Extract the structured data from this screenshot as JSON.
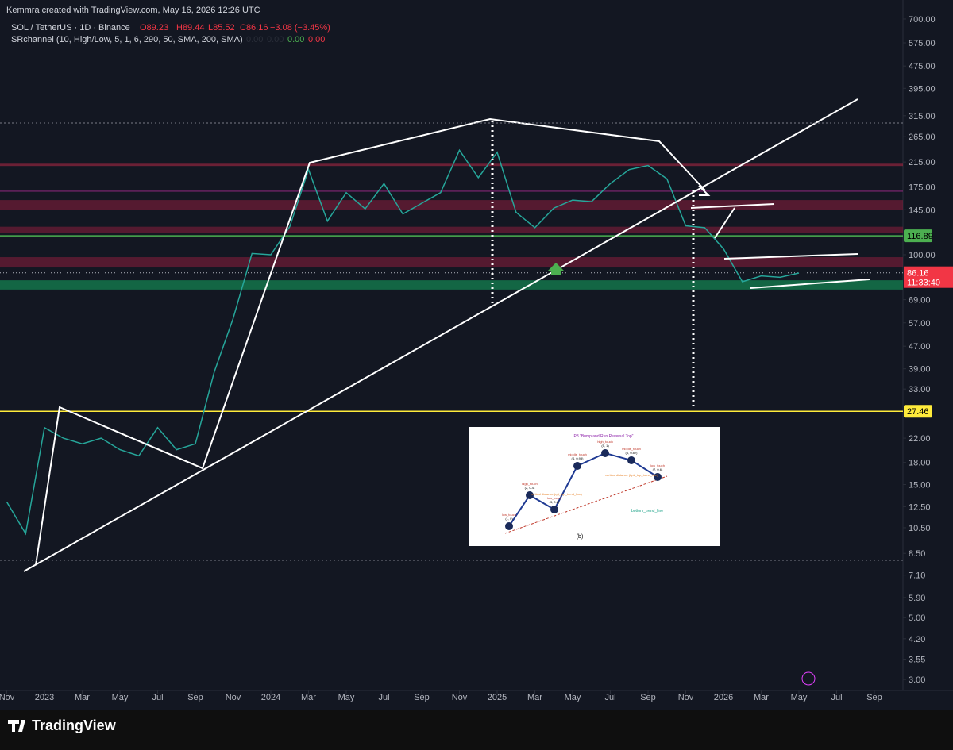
{
  "header": {
    "credit": "Kemmra created with TradingView.com, May 16, 2026 12:26 UTC",
    "symbol": "SOL / TetherUS · 1D · Binance",
    "open": "O89.23",
    "high": "H89.44",
    "low": "L85.52",
    "close": "C86.16",
    "change": "−3.08 (−3.45%)",
    "indicator": "SRchannel (10, High/Low, 5, 1, 6, 290, 50, SMA, 200, SMA)",
    "indicator_values": [
      "0.00",
      "0.00",
      "0.00",
      "0.00"
    ]
  },
  "chart_data": {
    "type": "line",
    "log_scale": true,
    "grid": false,
    "x": [
      "2022-11",
      "2022-12",
      "2023-01",
      "2023-02",
      "2023-03",
      "2023-04",
      "2023-05",
      "2023-06",
      "2023-07",
      "2023-08",
      "2023-09",
      "2023-10",
      "2023-11",
      "2023-12",
      "2024-01",
      "2024-02",
      "2024-03",
      "2024-04",
      "2024-05",
      "2024-06",
      "2024-07",
      "2024-08",
      "2024-09",
      "2024-10",
      "2024-11",
      "2024-12",
      "2025-01",
      "2025-02",
      "2025-03",
      "2025-04",
      "2025-05",
      "2025-06",
      "2025-07",
      "2025-08",
      "2025-09",
      "2025-10",
      "2025-11",
      "2025-12",
      "2026-01",
      "2026-02",
      "2026-03",
      "2026-04",
      "2026-05"
    ],
    "series": [
      {
        "name": "SOL / TetherUS",
        "color": "#26a69a",
        "values": [
          13,
          10,
          24,
          22,
          21,
          22,
          20,
          19,
          24,
          20,
          21,
          38,
          59,
          101,
          100,
          126,
          202,
          132,
          167,
          146,
          180,
          140,
          153,
          167,
          237,
          189,
          233,
          142,
          125,
          147,
          157,
          155,
          180,
          202,
          209,
          187,
          127,
          125,
          105,
          80,
          84,
          83,
          86
        ]
      }
    ],
    "ylim": [
      2.74,
      819
    ],
    "yticks": [
      {
        "value": 700,
        "label": "700.00"
      },
      {
        "value": 575,
        "label": "575.00"
      },
      {
        "value": 475,
        "label": "475.00"
      },
      {
        "value": 395,
        "label": "395.00"
      },
      {
        "value": 315,
        "label": "315.00"
      },
      {
        "value": 265,
        "label": "265.00"
      },
      {
        "value": 215,
        "label": "215.00"
      },
      {
        "value": 175,
        "label": "175.00"
      },
      {
        "value": 145,
        "label": "145.00"
      },
      {
        "value": 100,
        "label": "100.00"
      },
      {
        "value": 69,
        "label": "69.00"
      },
      {
        "value": 57,
        "label": "57.00"
      },
      {
        "value": 47,
        "label": "47.00"
      },
      {
        "value": 39,
        "label": "39.00"
      },
      {
        "value": 33,
        "label": "33.00"
      },
      {
        "value": 22,
        "label": "22.00"
      },
      {
        "value": 18,
        "label": "18.00"
      },
      {
        "value": 15,
        "label": "15.00"
      },
      {
        "value": 12.5,
        "label": "12.50"
      },
      {
        "value": 10.5,
        "label": "10.50"
      },
      {
        "value": 8.5,
        "label": "8.50"
      },
      {
        "value": 7.1,
        "label": "7.10"
      },
      {
        "value": 5.9,
        "label": "5.90"
      },
      {
        "value": 5,
        "label": "5.00"
      },
      {
        "value": 4.2,
        "label": "4.20"
      },
      {
        "value": 3.55,
        "label": "3.55"
      },
      {
        "value": 3,
        "label": "3.00"
      }
    ],
    "xticks": [
      {
        "value": "2022-11",
        "label": "Nov"
      },
      {
        "value": "2023-01",
        "label": "2023"
      },
      {
        "value": "2023-03",
        "label": "Mar"
      },
      {
        "value": "2023-05",
        "label": "May"
      },
      {
        "value": "2023-07",
        "label": "Jul"
      },
      {
        "value": "2023-09",
        "label": "Sep"
      },
      {
        "value": "2023-11",
        "label": "Nov"
      },
      {
        "value": "2024-01",
        "label": "2024"
      },
      {
        "value": "2024-03",
        "label": "Mar"
      },
      {
        "value": "2024-05",
        "label": "May"
      },
      {
        "value": "2024-07",
        "label": "Jul"
      },
      {
        "value": "2024-09",
        "label": "Sep"
      },
      {
        "value": "2024-11",
        "label": "Nov"
      },
      {
        "value": "2025-01",
        "label": "2025"
      },
      {
        "value": "2025-03",
        "label": "Mar"
      },
      {
        "value": "2025-05",
        "label": "May"
      },
      {
        "value": "2025-07",
        "label": "Jul"
      },
      {
        "value": "2025-09",
        "label": "Sep"
      },
      {
        "value": "2025-11",
        "label": "Nov"
      },
      {
        "value": "2026-01",
        "label": "2026"
      },
      {
        "value": "2026-03",
        "label": "Mar"
      },
      {
        "value": "2026-05",
        "label": "May"
      },
      {
        "value": "2026-07",
        "label": "Jul"
      },
      {
        "value": "2026-09",
        "label": "Sep"
      }
    ],
    "zones": [
      {
        "low": 208,
        "high": 212,
        "color": "rgba(180,40,70,0.55)"
      },
      {
        "low": 168,
        "high": 171,
        "color": "rgba(150,40,130,0.55)"
      },
      {
        "low": 145,
        "high": 157,
        "color": "rgba(140,30,60,0.55)"
      },
      {
        "low": 120,
        "high": 126,
        "color": "rgba(140,30,60,0.55)"
      },
      {
        "low": 90,
        "high": 98,
        "color": "rgba(140,30,60,0.55)"
      },
      {
        "low": 75,
        "high": 81,
        "color": "rgba(20,130,80,0.75)"
      }
    ],
    "price_lines": [
      {
        "value": 116.89,
        "color": "#4caf50"
      },
      {
        "value": 27.46,
        "color": "#ffeb3b"
      }
    ],
    "last_price": {
      "value": 86.16,
      "color": "#f23645",
      "countdown": "11:33:40"
    }
  },
  "inset": {
    "title": "P8  \"Bump and Run Reversal Top\"",
    "caption": "(b)",
    "nodes": [
      {
        "label": "low_touch",
        "coord": "(1, 0)"
      },
      {
        "label": "high_touch",
        "coord": "(2, 0.4)"
      },
      {
        "label": "low_touch",
        "coord": "(3, 0.2)"
      },
      {
        "label": "middle_touch",
        "coord": "(4, 0.93)"
      },
      {
        "label": "high_touch",
        "coord": "(5, 1)"
      },
      {
        "label": "middle_touch",
        "coord": "(6, 0.82)"
      },
      {
        "label": "low_touch",
        "coord": "(7, 0.6)"
      }
    ],
    "notes": [
      "vertical distance (rpt_top_trend_line)",
      "vertical distance (bpk_top_trend_line)",
      "bottom_trend_line"
    ]
  },
  "footer": {
    "brand": "TradingView"
  }
}
